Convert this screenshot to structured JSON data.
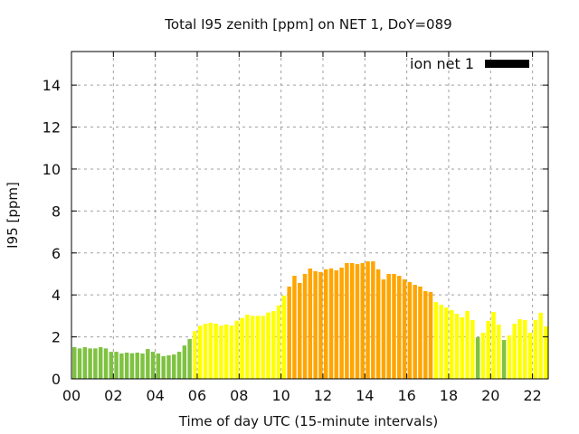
{
  "chart_data": {
    "type": "bar",
    "title": "Total I95 zenith [ppm] on NET 1, DoY=089",
    "xlabel": "Time of day UTC (15-minute intervals)",
    "ylabel": "I95 [ppm]",
    "xlim": [
      0,
      22.75
    ],
    "ylim": [
      0,
      15.6
    ],
    "grid": true,
    "legend_position": "top-right",
    "legend": [
      {
        "label": "ion net 1",
        "color": "#000000"
      }
    ],
    "x_ticks": [
      {
        "value": 0,
        "label": "00"
      },
      {
        "value": 2,
        "label": "02"
      },
      {
        "value": 4,
        "label": "04"
      },
      {
        "value": 6,
        "label": "06"
      },
      {
        "value": 8,
        "label": "08"
      },
      {
        "value": 10,
        "label": "10"
      },
      {
        "value": 12,
        "label": "12"
      },
      {
        "value": 14,
        "label": "14"
      },
      {
        "value": 16,
        "label": "16"
      },
      {
        "value": 18,
        "label": "18"
      },
      {
        "value": 20,
        "label": "20"
      },
      {
        "value": 22,
        "label": "22"
      }
    ],
    "y_ticks": [
      {
        "value": 0,
        "label": "0"
      },
      {
        "value": 2,
        "label": "2"
      },
      {
        "value": 4,
        "label": "4"
      },
      {
        "value": 6,
        "label": "6"
      },
      {
        "value": 8,
        "label": "8"
      },
      {
        "value": 10,
        "label": "10"
      },
      {
        "value": 12,
        "label": "12"
      },
      {
        "value": 14,
        "label": "14"
      }
    ],
    "interval_hours": 0.25,
    "class_colors": {
      "low": "#7fc241",
      "moderate": "#ffff00",
      "elevated": "#ffa500"
    },
    "values": [
      1.51,
      1.45,
      1.51,
      1.45,
      1.45,
      1.51,
      1.45,
      1.29,
      1.29,
      1.21,
      1.25,
      1.22,
      1.25,
      1.21,
      1.42,
      1.29,
      1.21,
      1.08,
      1.12,
      1.16,
      1.29,
      1.59,
      1.9,
      2.28,
      2.53,
      2.63,
      2.67,
      2.63,
      2.54,
      2.59,
      2.54,
      2.77,
      2.9,
      3.06,
      3.0,
      3.0,
      3.0,
      3.16,
      3.23,
      3.5,
      3.97,
      4.4,
      4.91,
      4.57,
      5.0,
      5.26,
      5.13,
      5.09,
      5.22,
      5.26,
      5.17,
      5.3,
      5.52,
      5.52,
      5.47,
      5.52,
      5.6,
      5.6,
      5.22,
      4.74,
      5.0,
      5.0,
      4.91,
      4.74,
      4.61,
      4.48,
      4.4,
      4.18,
      4.14,
      3.66,
      3.53,
      3.4,
      3.28,
      3.1,
      2.93,
      3.23,
      2.8,
      1.98,
      2.2,
      2.76,
      3.19,
      2.59,
      1.85,
      2.07,
      2.63,
      2.84,
      2.8,
      2.2,
      2.8,
      3.15,
      2.5
    ],
    "classes": [
      "low",
      "low",
      "low",
      "low",
      "low",
      "low",
      "low",
      "low",
      "low",
      "low",
      "low",
      "low",
      "low",
      "low",
      "low",
      "low",
      "low",
      "low",
      "low",
      "low",
      "low",
      "low",
      "low",
      "moderate",
      "moderate",
      "moderate",
      "moderate",
      "moderate",
      "moderate",
      "moderate",
      "moderate",
      "moderate",
      "moderate",
      "moderate",
      "moderate",
      "moderate",
      "moderate",
      "moderate",
      "moderate",
      "moderate",
      "moderate",
      "elevated",
      "elevated",
      "elevated",
      "elevated",
      "elevated",
      "elevated",
      "elevated",
      "elevated",
      "elevated",
      "elevated",
      "elevated",
      "elevated",
      "elevated",
      "elevated",
      "elevated",
      "elevated",
      "elevated",
      "elevated",
      "elevated",
      "elevated",
      "elevated",
      "elevated",
      "elevated",
      "elevated",
      "elevated",
      "elevated",
      "elevated",
      "elevated",
      "moderate",
      "moderate",
      "moderate",
      "moderate",
      "moderate",
      "moderate",
      "moderate",
      "moderate",
      "low",
      "moderate",
      "moderate",
      "moderate",
      "moderate",
      "low",
      "moderate",
      "moderate",
      "moderate",
      "moderate",
      "moderate",
      "moderate",
      "moderate",
      "moderate"
    ]
  }
}
